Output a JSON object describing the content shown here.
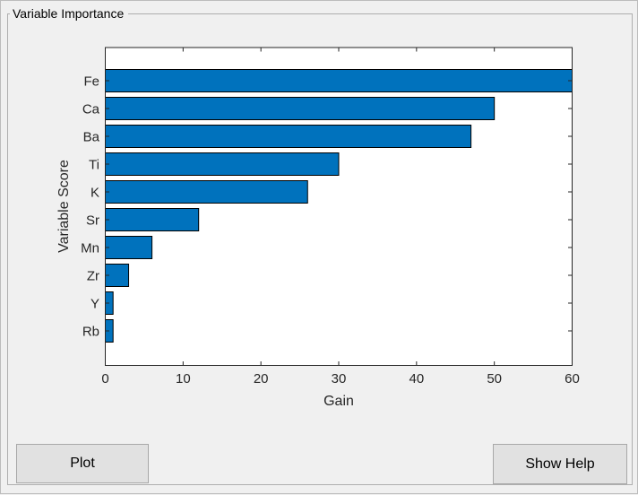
{
  "window": {
    "bg_color": "#f0f0f0"
  },
  "panel": {
    "title": "Variable Importance"
  },
  "buttons": {
    "plot": "Plot",
    "show_help": "Show Help"
  },
  "chart_data": {
    "type": "bar",
    "orientation": "horizontal",
    "categories": [
      "Fe",
      "Ca",
      "Ba",
      "Ti",
      "K",
      "Sr",
      "Mn",
      "Zr",
      "Y",
      "Rb"
    ],
    "values": [
      60,
      50,
      47,
      30,
      26,
      12,
      6,
      3,
      1,
      1
    ],
    "title": "",
    "xlabel": "Gain",
    "ylabel": "Variable Score",
    "xlim": [
      0,
      60
    ],
    "xticks": [
      0,
      10,
      20,
      30,
      40,
      50,
      60
    ],
    "grid": false,
    "legend": "none",
    "bar_color": "#0072BD",
    "bar_edge_color": "#000000",
    "axes_color": "#262626",
    "plot_bg": "#ffffff"
  }
}
